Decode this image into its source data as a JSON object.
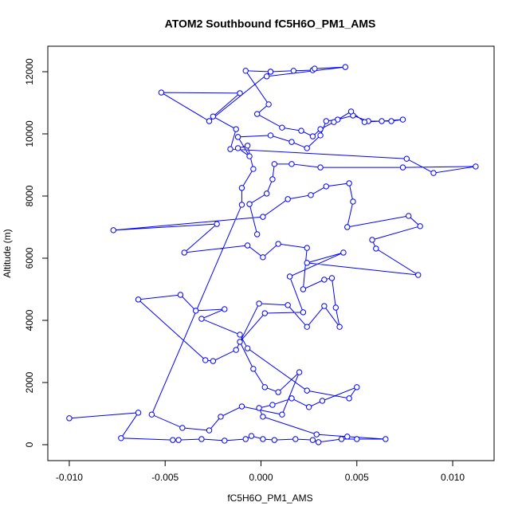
{
  "chart_data": {
    "type": "scatter",
    "title": "ATOM2 Southbound fC5H6O_PM1_AMS",
    "x_label": "fC5H6O_PM1_AMS",
    "y_label": "Altitude (m)",
    "color": "#0000ff",
    "connect_points": true,
    "xlim": [
      -0.01112,
      0.01216
    ],
    "ylim": [
      -513,
      12820
    ],
    "xticks": [
      {
        "value": -0.01,
        "label": "-0.010"
      },
      {
        "value": -0.005,
        "label": "-0.005"
      },
      {
        "value": 0,
        "label": "0.000"
      },
      {
        "value": 0.005,
        "label": "0.005"
      },
      {
        "value": 0.01,
        "label": "0.010"
      }
    ],
    "yticks": [
      0,
      2000,
      4000,
      6000,
      8000,
      10000,
      12000
    ],
    "x": [
      -0.01,
      -0.0064,
      -0.0073,
      -0.0046,
      -0.0043,
      -0.0031,
      -0.0019,
      -0.0008,
      -0.0005,
      0.0001,
      0.0007,
      0.0018,
      0.0027,
      0.003,
      0.0042,
      0.005,
      0.0065,
      0.0045,
      0.0029,
      0.0001,
      -0.0001,
      0.0006,
      0.0016,
      0.0025,
      0.0032,
      0.005,
      0.0046,
      0.0024,
      -0.0007,
      -0.0011,
      -0.0031,
      -0.0019,
      -0.0034,
      -0.0042,
      -0.0064,
      -0.0029,
      -0.0025,
      -0.0013,
      -0.0001,
      0.0014,
      0.0024,
      0.0033,
      0.0041,
      0.0039,
      0.0037,
      0.0033,
      0.0022,
      0.0024,
      0.0009,
      0.0001,
      -0.0007,
      -0.004,
      -0.0023,
      -0.0077,
      0.0001,
      0.0014,
      0.0026,
      0.0034,
      0.0046,
      0.0048,
      0.0045,
      0.0077,
      0.0083,
      0.0058,
      0.006,
      0.0082,
      0.0024,
      0.0043,
      0.0015,
      0.0022,
      0.0002,
      -0.0011,
      -0.0004,
      0.0002,
      0.0009,
      0.002,
      0.0011,
      -0.001,
      -0.0021,
      -0.0027,
      -0.0041,
      -0.0057,
      -0.001,
      -0.001,
      -0.0004,
      -0.0007,
      -0.0012,
      -0.0006,
      -0.0012,
      0.0005,
      0.0016,
      0.0024,
      0.0031,
      0.0034,
      0.004,
      0.0048,
      0.0056,
      0.0068,
      0.0074,
      0.0063,
      0.0054,
      0.0047,
      0.0038,
      0.0031,
      0.0027,
      0.0021,
      0.0011,
      -0.0002,
      0.0004,
      -0.0008,
      0.0005,
      0.0017,
      0.0027,
      0.0028,
      0.0044,
      0.0003,
      0.0005,
      -0.0027,
      -0.0052,
      -0.0011,
      -0.0025,
      -0.0013,
      -0.0016,
      0.0076,
      0.009,
      0.0112,
      0.0074,
      0.0031,
      0.0016,
      0.0007,
      0.0006,
      0.0003,
      -0.0006,
      -0.0002
    ],
    "values": [
      850,
      1030,
      210,
      150,
      150,
      180,
      130,
      180,
      280,
      180,
      150,
      180,
      150,
      80,
      180,
      180,
      180,
      260,
      330,
      900,
      1180,
      1280,
      1490,
      1210,
      1410,
      1850,
      1490,
      1740,
      3100,
      3540,
      4050,
      4360,
      4310,
      4820,
      4670,
      2720,
      2690,
      3050,
      4540,
      4490,
      3790,
      4460,
      3790,
      4410,
      5360,
      5310,
      5000,
      6330,
      6460,
      6030,
      6410,
      6180,
      7100,
      6900,
      7330,
      7900,
      8030,
      8310,
      8410,
      7820,
      7000,
      7360,
      7030,
      6590,
      6310,
      5460,
      5850,
      6180,
      5410,
      4260,
      4230,
      3310,
      2440,
      1850,
      1690,
      2330,
      970,
      1230,
      900,
      460,
      540,
      970,
      7720,
      8260,
      8870,
      9620,
      9540,
      9280,
      9900,
      9950,
      9740,
      9540,
      9950,
      10410,
      10460,
      10590,
      10410,
      10410,
      10460,
      10410,
      10380,
      10720,
      10380,
      10150,
      9920,
      10100,
      10200,
      10640,
      10950,
      12030,
      12000,
      12030,
      12050,
      12100,
      12150,
      11850,
      12000,
      10410,
      11330,
      11310,
      10560,
      10150,
      9510,
      9200,
      8740,
      8950,
      8920,
      8920,
      9030,
      9030,
      8540,
      8080,
      7740,
      6770
    ]
  }
}
